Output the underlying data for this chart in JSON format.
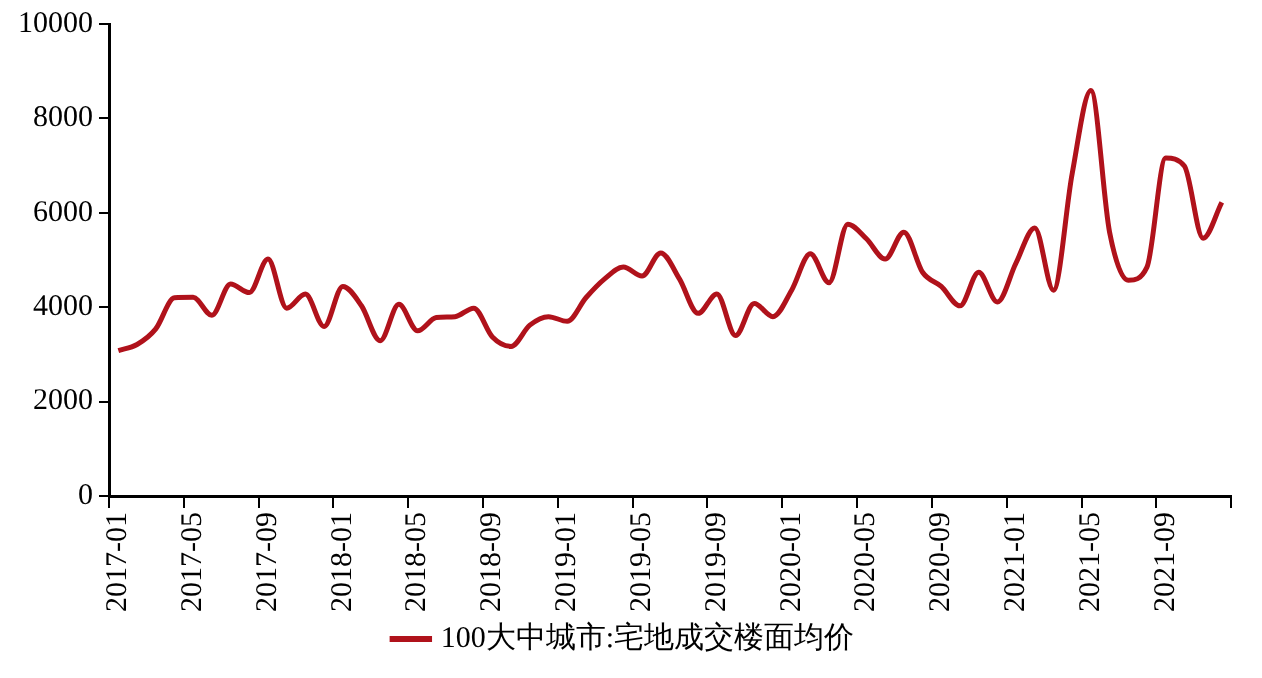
{
  "chart_data": {
    "type": "line",
    "categories": [
      "2017-01",
      null,
      null,
      null,
      "2017-05",
      null,
      null,
      null,
      "2017-09",
      null,
      null,
      null,
      "2018-01",
      null,
      null,
      null,
      "2018-05",
      null,
      null,
      null,
      "2018-09",
      null,
      null,
      null,
      "2019-01",
      null,
      null,
      null,
      "2019-05",
      null,
      null,
      null,
      "2019-09",
      null,
      null,
      null,
      "2020-01",
      null,
      null,
      null,
      "2020-05",
      null,
      null,
      null,
      "2020-09",
      null,
      null,
      null,
      "2021-01",
      null,
      null,
      null,
      "2021-05",
      null,
      null,
      null,
      "2021-09",
      null,
      null,
      null
    ],
    "series": [
      {
        "name": "100大中城市:宅地成交楼面均价",
        "color": "#b0121b",
        "values": [
          3080,
          3210,
          3540,
          4200,
          4210,
          3830,
          4490,
          4310,
          5020,
          3980,
          4280,
          3590,
          4440,
          4030,
          3290,
          4060,
          3500,
          3780,
          3800,
          3980,
          3370,
          3170,
          3620,
          3800,
          3700,
          4200,
          4600,
          4850,
          4660,
          5150,
          4600,
          3870,
          4280,
          3400,
          4080,
          3800,
          4360,
          5130,
          4520,
          5760,
          5450,
          5020,
          5590,
          4740,
          4440,
          4030,
          4740,
          4110,
          4940,
          5680,
          4360,
          6830,
          8590,
          5590,
          4570,
          4850,
          7160,
          6990,
          5460,
          6220
        ]
      }
    ],
    "ylim": [
      0,
      10000
    ],
    "yticks": [
      0,
      2000,
      4000,
      6000,
      8000,
      10000
    ],
    "legend": "bottom",
    "marker": "none",
    "line_style": "solid"
  }
}
